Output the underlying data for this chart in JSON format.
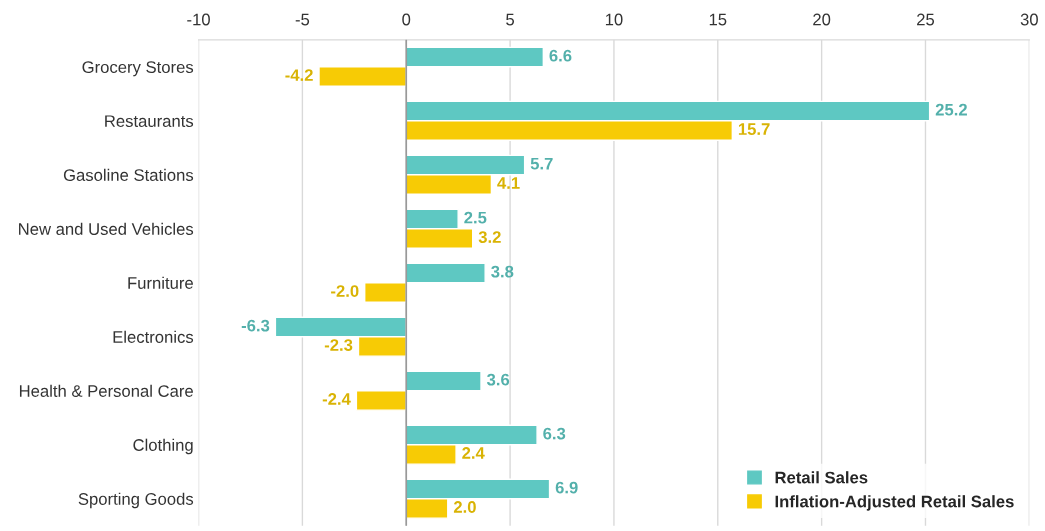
{
  "chart_data": {
    "type": "bar",
    "orientation": "horizontal",
    "categories": [
      "Grocery Stores",
      "Restaurants",
      "Gasoline Stations",
      "New and Used Vehicles",
      "Furniture",
      "Electronics",
      "Health & Personal Care",
      "Clothing",
      "Sporting Goods"
    ],
    "series": [
      {
        "name": "Retail Sales",
        "color": "#5ec8c2",
        "values": [
          6.6,
          25.2,
          5.7,
          2.5,
          3.8,
          -6.3,
          3.6,
          6.3,
          6.9
        ],
        "value_labels": [
          "6.6",
          "25.2",
          "5.7",
          "2.5",
          "3.8",
          "-6.3",
          "3.6",
          "6.3",
          "6.9"
        ]
      },
      {
        "name": "Inflation-Adjusted Retail Sales",
        "color": "#f7cb05",
        "values": [
          -4.2,
          15.7,
          4.1,
          3.2,
          -2.0,
          -2.3,
          -2.4,
          2.4,
          2.0
        ],
        "value_labels": [
          "-4.2",
          "15.7",
          "4.1",
          "3.2",
          "-2.0",
          "-2.3",
          "-2.4",
          "2.4",
          "2.0"
        ]
      }
    ],
    "xlim": [
      -10,
      30
    ],
    "xticks": [
      -10,
      -5,
      0,
      5,
      10,
      15,
      20,
      25,
      30
    ],
    "ref_lines": [
      {
        "axis": "x",
        "value": 0,
        "color": "#999999"
      }
    ],
    "grid": "x",
    "legend": "bottom right"
  }
}
